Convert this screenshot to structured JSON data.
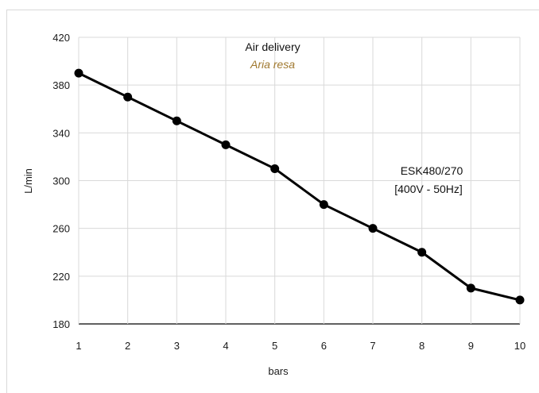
{
  "chart_data": {
    "type": "line",
    "title": "Air delivery",
    "subtitle": "Aria resa",
    "subtitle_color": "#a0782e",
    "annotation": [
      "ESK480/270",
      "[400V - 50Hz]"
    ],
    "xlabel": "bars",
    "ylabel": "L/min",
    "x": [
      1,
      2,
      3,
      4,
      5,
      6,
      7,
      8,
      9,
      10
    ],
    "series": [
      {
        "values": [
          390,
          370,
          350,
          330,
          310,
          280,
          260,
          240,
          210,
          200
        ]
      }
    ],
    "xlim": [
      1,
      10
    ],
    "ylim": [
      180,
      420
    ],
    "xticks": [
      "1",
      "2",
      "3",
      "4",
      "5",
      "6",
      "7",
      "8",
      "9",
      "10"
    ],
    "yticks": [
      "180",
      "220",
      "260",
      "300",
      "340",
      "380",
      "420"
    ],
    "grid": true,
    "line_color": "#000000",
    "grid_color": "#d9d9d9"
  }
}
